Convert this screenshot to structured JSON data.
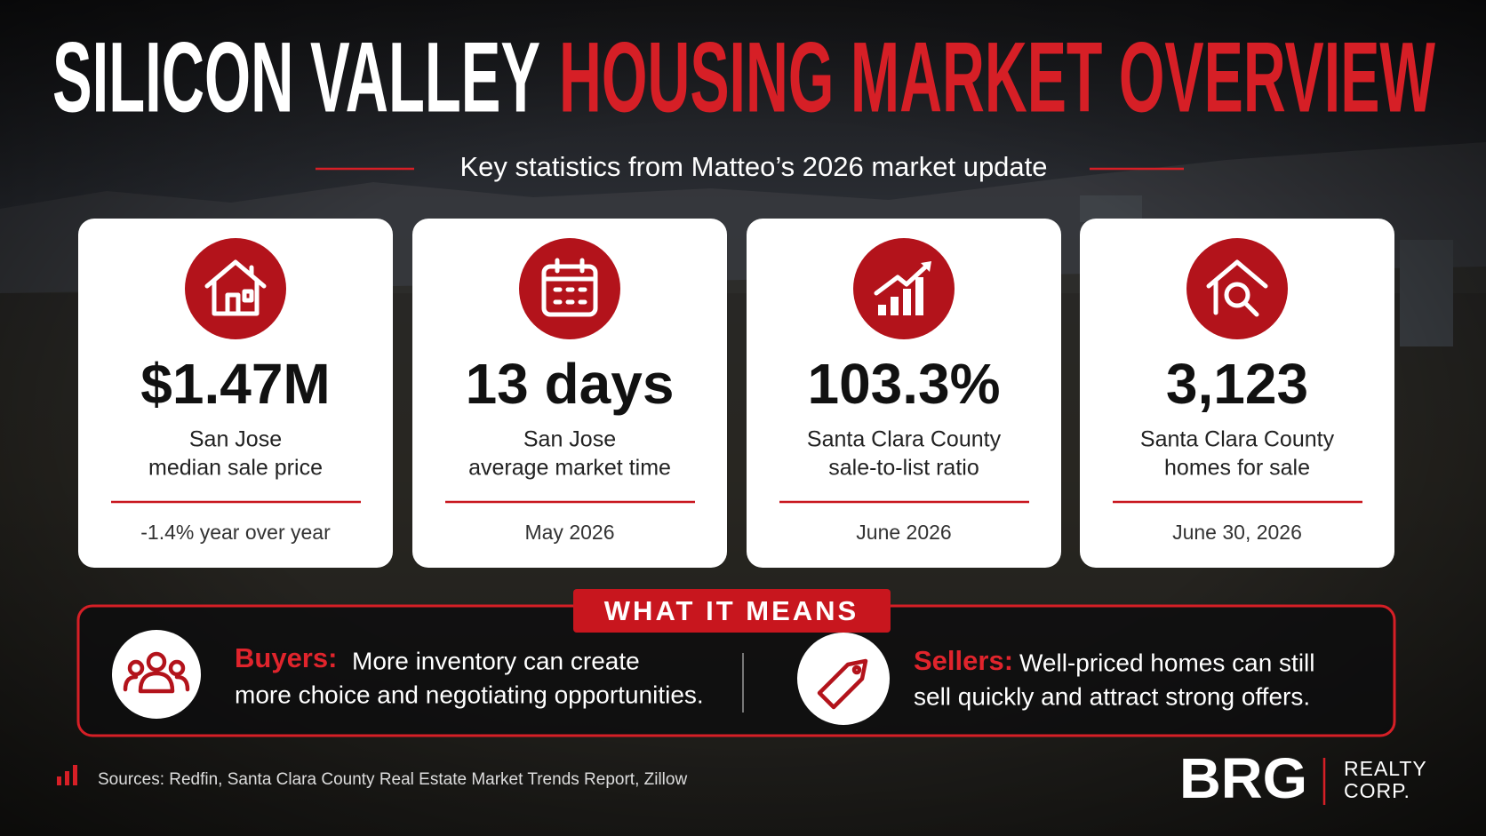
{
  "header": {
    "title_white": "SILICON VALLEY",
    "title_red": "HOUSING MARKET OVERVIEW",
    "subtitle": "Key statistics from Matteo’s 2026 market update"
  },
  "stats": [
    {
      "value": "$1.47M",
      "label_line1": "San Jose",
      "label_line2": "median sale price",
      "note": "-1.4% year over year"
    },
    {
      "value": "13 days",
      "label_line1": "San Jose",
      "label_line2": "average market time",
      "note": "May 2026"
    },
    {
      "value": "103.3%",
      "label_line1": "Santa Clara County",
      "label_line2": "sale-to-list ratio",
      "note": "June 2026"
    },
    {
      "value": "3,123",
      "label_line1": "Santa Clara County",
      "label_line2": "homes for sale",
      "note": "June 30, 2026"
    }
  ],
  "meaning": {
    "heading": "WHAT IT MEANS",
    "buyers": {
      "label": "Buyers:",
      "text_line1": "More inventory can create",
      "text_line2": "more choice and negotiating opportunities."
    },
    "sellers": {
      "label": "Sellers:",
      "text_line1": "Well-priced homes can still",
      "text_line2": "sell quickly and attract strong offers."
    }
  },
  "footer": {
    "sources": "Sources: Redfin, Santa Clara County Real Estate Market Trends Report, Zillow",
    "brand": "BRG",
    "brand_sub_line1": "REALTY",
    "brand_sub_line2": "CORP."
  }
}
